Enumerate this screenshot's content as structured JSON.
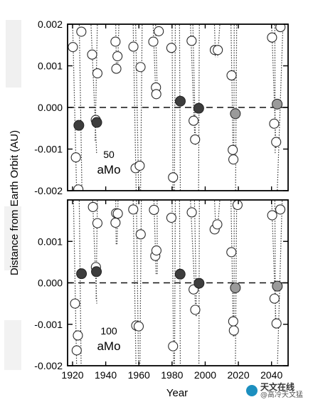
{
  "chart_data": [
    {
      "type": "scatter",
      "panel_label": [
        "50",
        "aMo"
      ],
      "ylabel": "Distance from Earth Orbit (AU)",
      "xlabel": "Year",
      "xlim": [
        1917,
        2050
      ],
      "ylim": [
        -0.002,
        0.002
      ],
      "yticks": [
        "0.002",
        "0.001",
        "0.000",
        "-0.001",
        "-0.002"
      ],
      "ytick_values": [
        0.002,
        0.001,
        0.0,
        -0.001,
        -0.002
      ],
      "xticks": [
        "1920",
        "1940",
        "1960",
        "1980",
        "2000",
        "2020",
        "2040"
      ],
      "xtick_values": [
        1920,
        1940,
        1960,
        1980,
        2000,
        2020,
        2040
      ],
      "zero_line": "dashed",
      "open_points": [
        [
          1920.2,
          0.00145
        ],
        [
          1922.0,
          -0.0012
        ],
        [
          1923.5,
          -0.00197
        ],
        [
          1925.3,
          0.00182
        ],
        [
          1931.8,
          0.00127
        ],
        [
          1934.0,
          -0.0003
        ],
        [
          1935.0,
          0.00082
        ],
        [
          1945.9,
          0.00158
        ],
        [
          1946.4,
          0.00093
        ],
        [
          1947.1,
          0.00123
        ],
        [
          1956.7,
          0.00146
        ],
        [
          1958.0,
          -0.00146
        ],
        [
          1960.5,
          -0.0014
        ],
        [
          1961.0,
          0.00097
        ],
        [
          1968.7,
          0.00158
        ],
        [
          1970.3,
          0.00048
        ],
        [
          1970.5,
          0.00032
        ],
        [
          1972.0,
          0.00183
        ],
        [
          1979.6,
          0.00143
        ],
        [
          1980.6,
          -0.00168
        ],
        [
          1991.8,
          0.0016
        ],
        [
          1993.0,
          -0.00032
        ],
        [
          1993.9,
          -0.00077
        ],
        [
          2005.8,
          0.00138
        ],
        [
          2007.6,
          0.00138
        ],
        [
          2015.9,
          0.00077
        ],
        [
          2016.6,
          -0.00102
        ],
        [
          2017.0,
          -0.00125
        ],
        [
          2040.3,
          0.00168
        ],
        [
          2041.6,
          -0.00039
        ],
        [
          2042.8,
          -0.00083
        ],
        [
          2045.4,
          0.00193
        ]
      ],
      "filled_points": [
        {
          "x": 1923.8,
          "y": -0.00043,
          "shade": "dark"
        },
        {
          "x": 1934.6,
          "y": -0.00036,
          "shade": "dark"
        },
        {
          "x": 1985.0,
          "y": 0.00015,
          "shade": "dark"
        },
        {
          "x": 1996.1,
          "y": -2e-05,
          "shade": "dark"
        },
        {
          "x": 2018.2,
          "y": -0.00015,
          "shade": "gray"
        },
        {
          "x": 2043.4,
          "y": 8e-05,
          "shade": "gray"
        }
      ],
      "traces": [
        [
          1920.0,
          0.0021,
          1922.5,
          -0.0021
        ],
        [
          1924.0,
          0.0021,
          1925.7,
          -0.0021
        ],
        [
          1931.0,
          0.0021,
          1934.5,
          -0.0011
        ],
        [
          1935.0,
          0.0021,
          1933.6,
          -0.0008
        ],
        [
          1946.0,
          0.0021,
          1946.5,
          0.0008
        ],
        [
          1948.0,
          0.0021,
          1947.2,
          0.0009
        ],
        [
          1956.5,
          0.0021,
          1958.4,
          -0.0021
        ],
        [
          1958.0,
          0.0021,
          1959.9,
          -0.0021
        ],
        [
          1962.0,
          0.0021,
          1961.0,
          -0.0021
        ],
        [
          1968.5,
          0.0021,
          1970.2,
          0.0003
        ],
        [
          1970.0,
          0.0021,
          1971.2,
          0.0002
        ],
        [
          1980.0,
          0.0021,
          1980.6,
          -0.0021
        ],
        [
          1982.0,
          0.0021,
          1981.4,
          -0.0021
        ],
        [
          1984.5,
          0.0021,
          1985.0,
          -0.0021
        ],
        [
          1991.0,
          0.0021,
          1993.8,
          -0.0008
        ],
        [
          1992.5,
          0.0021,
          1994.2,
          -0.0009
        ],
        [
          1996.5,
          0.0021,
          1996.0,
          -0.0021
        ],
        [
          2005.5,
          0.0021,
          2006.2,
          0.0012
        ],
        [
          2009.0,
          0.0021,
          2007.5,
          0.0012
        ],
        [
          2015.5,
          0.0021,
          2016.9,
          -0.0013
        ],
        [
          2017.5,
          0.0021,
          2017.3,
          -0.0013
        ],
        [
          2019.0,
          0.0021,
          2018.3,
          -0.0021
        ],
        [
          2040.0,
          0.0021,
          2042.7,
          -0.001
        ],
        [
          2042.0,
          0.0021,
          2042.2,
          -0.0011
        ],
        [
          2047.0,
          0.0021,
          2043.4,
          -0.0021
        ]
      ]
    },
    {
      "type": "scatter",
      "panel_label": [
        "100",
        "aMo"
      ],
      "ylabel": "Distance from Earth Orbit (AU)",
      "xlabel": "Year",
      "xlim": [
        1917,
        2050
      ],
      "ylim": [
        -0.002,
        0.002
      ],
      "yticks": [
        "0.001",
        "0.000",
        "-0.001",
        "-0.002"
      ],
      "ytick_values": [
        0.001,
        0.0,
        -0.001,
        -0.002
      ],
      "xticks": [
        "1920",
        "1940",
        "1960",
        "1980",
        "2000",
        "2020",
        "2040"
      ],
      "xtick_values": [
        1920,
        1940,
        1960,
        1980,
        2000,
        2020,
        2040
      ],
      "zero_line": "dashed",
      "open_points": [
        [
          1921.5,
          -0.0005
        ],
        [
          1922.5,
          -0.00163
        ],
        [
          1923.2,
          -0.00127
        ],
        [
          1932.3,
          0.00183
        ],
        [
          1934.1,
          0.00038
        ],
        [
          1935.0,
          0.00144
        ],
        [
          1945.9,
          0.00145
        ],
        [
          1946.3,
          0.00168
        ],
        [
          1947.3,
          0.00167
        ],
        [
          1956.6,
          0.00177
        ],
        [
          1958.4,
          -0.00103
        ],
        [
          1959.9,
          -0.00105
        ],
        [
          1961.1,
          0.00117
        ],
        [
          1969.1,
          0.00176
        ],
        [
          1969.9,
          0.00065
        ],
        [
          1970.6,
          0.00078
        ],
        [
          1979.6,
          0.00157
        ],
        [
          1980.6,
          -0.00153
        ],
        [
          1991.9,
          0.0017
        ],
        [
          1993.0,
          -0.00016
        ],
        [
          1994.0,
          -0.00065
        ],
        [
          2005.7,
          0.00129
        ],
        [
          2007.3,
          0.00141
        ],
        [
          2015.8,
          0.00074
        ],
        [
          2016.9,
          -0.00093
        ],
        [
          2017.3,
          -0.00115
        ],
        [
          2019.5,
          0.00188
        ],
        [
          2040.4,
          0.00163
        ],
        [
          2041.8,
          -0.00038
        ],
        [
          2043.0,
          -0.00098
        ],
        [
          2045.3,
          0.00177
        ]
      ],
      "filled_points": [
        {
          "x": 1925.4,
          "y": 0.00022,
          "shade": "dark"
        },
        {
          "x": 1934.4,
          "y": 0.00027,
          "shade": "dark"
        },
        {
          "x": 1984.9,
          "y": 0.00021,
          "shade": "dark"
        },
        {
          "x": 1996.3,
          "y": -1e-05,
          "shade": "dark"
        },
        {
          "x": 2018.2,
          "y": -0.00012,
          "shade": "gray"
        },
        {
          "x": 2043.5,
          "y": -8e-05,
          "shade": "gray"
        }
      ],
      "traces": [
        [
          1920.5,
          0.0021,
          1922.5,
          -0.0021
        ],
        [
          1924.0,
          0.0021,
          1925.2,
          -0.0021
        ],
        [
          1932.0,
          0.0021,
          1934.6,
          -0.0005
        ],
        [
          1935.0,
          0.0021,
          1934.2,
          -0.0004
        ],
        [
          1946.0,
          0.0021,
          1946.3,
          0.0009
        ],
        [
          1947.5,
          0.0021,
          1946.8,
          0.0009
        ],
        [
          1956.5,
          0.0021,
          1958.3,
          -0.0021
        ],
        [
          1958.5,
          0.0021,
          1959.8,
          -0.0021
        ],
        [
          1961.5,
          0.0021,
          1960.6,
          -0.0021
        ],
        [
          1969.0,
          0.0021,
          1970.4,
          0.0002
        ],
        [
          1971.0,
          0.0021,
          1971.1,
          0.0002
        ],
        [
          1980.0,
          0.0021,
          1981.0,
          -0.0021
        ],
        [
          1982.0,
          0.0021,
          1981.5,
          -0.0021
        ],
        [
          1984.5,
          0.0021,
          1985.0,
          -0.0021
        ],
        [
          1991.0,
          0.0021,
          1994.4,
          -0.0008
        ],
        [
          1993.5,
          0.0021,
          1994.8,
          -0.0008
        ],
        [
          1996.5,
          0.0021,
          1996.2,
          -0.0021
        ],
        [
          2005.5,
          0.0021,
          2006.5,
          0.0012
        ],
        [
          2009.0,
          0.0021,
          2007.3,
          0.0012
        ],
        [
          2015.5,
          0.0021,
          2017.0,
          -0.0013
        ],
        [
          2017.5,
          0.0021,
          2017.4,
          -0.0013
        ],
        [
          2019.0,
          0.0021,
          2018.2,
          -0.0021
        ],
        [
          2040.0,
          0.0021,
          2042.7,
          -0.001
        ],
        [
          2042.0,
          0.0021,
          2042.4,
          -0.0011
        ],
        [
          2046.5,
          0.0021,
          2043.5,
          -0.0021
        ]
      ]
    }
  ],
  "colors": {
    "axis": "#000000",
    "open_marker": "#2a2a2a",
    "filled_dark": "#3d3d3d",
    "filled_gray": "#9a9a9a",
    "trace": "#333333",
    "smudge": "#ebebeb"
  },
  "watermark": {
    "line1": "天文在线",
    "line2": "@高冷天文猛",
    "icon": "wechat-logo-icon"
  }
}
